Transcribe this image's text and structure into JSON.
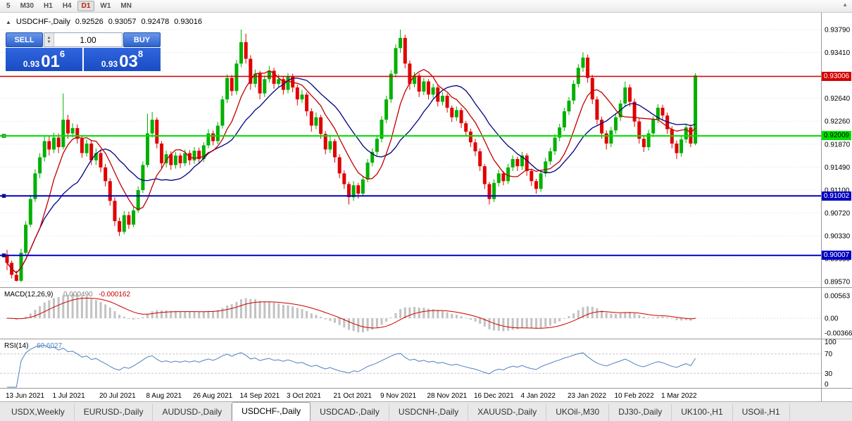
{
  "toolbar": {
    "timeframes": [
      "5",
      "M30",
      "H1",
      "H4",
      "D1",
      "W1",
      "MN"
    ],
    "active_timeframe": "D1"
  },
  "icons": {
    "panel_toggle": "▲",
    "volume_up": "▲",
    "volume_down": "▼",
    "chart_scroll": "▲"
  },
  "chart": {
    "header": {
      "symbol": "USDCHF-,Daily",
      "open": "0.92526",
      "high": "0.93057",
      "low": "0.92478",
      "close": "0.93016"
    },
    "price_axis": [
      "0.93790",
      "0.93410",
      "0.93040",
      "0.92640",
      "0.92260",
      "0.91870",
      "0.91490",
      "0.91100",
      "0.90720",
      "0.90330",
      "0.89950",
      "0.89570"
    ],
    "date_axis": [
      "13 Jun 2021",
      "1 Jul 2021",
      "20 Jul 2021",
      "8 Aug 2021",
      "26 Aug 2021",
      "14 Sep 2021",
      "3 Oct 2021",
      "21 Oct 2021",
      "9 Nov 2021",
      "28 Nov 2021",
      "16 Dec 2021",
      "4 Jan 2022",
      "23 Jan 2022",
      "10 Feb 2022",
      "1 Mar 2022"
    ],
    "hlines": [
      {
        "price": "0.93006",
        "value": 0.93006,
        "color": "#d40000",
        "label_text_color": "#ffffff",
        "width": 1.4,
        "handle": false
      },
      {
        "price": "0.92009",
        "value": 0.92009,
        "color": "#00e000",
        "label_text_color": "#000000",
        "width": 2,
        "handle": true
      },
      {
        "price": "0.91002",
        "value": 0.91002,
        "color": "#0000c0",
        "label_text_color": "#ffffff",
        "width": 2,
        "handle": true
      },
      {
        "price": "0.90007",
        "value": 0.90007,
        "color": "#0000c0",
        "label_text_color": "#ffffff",
        "width": 2,
        "handle": true
      }
    ],
    "colors": {
      "up": "#00b000",
      "down": "#e00000",
      "ma_fast": "#c00000",
      "ma_slow": "#000080",
      "macd_hist": "#c2c2c2",
      "macd_signal": "#cc0000",
      "rsi": "#4f81bd"
    }
  },
  "trade_panel": {
    "sell_label": "SELL",
    "buy_label": "BUY",
    "volume": "1.00",
    "sell_price": {
      "prefix": "0.93",
      "big": "01",
      "sup": "6"
    },
    "buy_price": {
      "prefix": "0.93",
      "big": "03",
      "sup": "8"
    }
  },
  "macd": {
    "label": "MACD(12,26,9)",
    "value_main": "0.000490",
    "value_signal": "-0.000162",
    "axis": [
      "0.00563",
      "0.00",
      "-0.00366"
    ]
  },
  "rsi": {
    "label": "RSI(14)",
    "value": "60.6027",
    "axis": [
      "100",
      "70",
      "30",
      "0"
    ]
  },
  "tabs": {
    "items": [
      "USDX,Weekly",
      "EURUSD-,Daily",
      "AUDUSD-,Daily",
      "USDCHF-,Daily",
      "USDCAD-,Daily",
      "USDCNH-,Daily",
      "XAUUSD-,Daily",
      "UKOil-,M30",
      "DJ30-,Daily",
      "UK100-,H1",
      "USOil-,H1"
    ],
    "active_index": 3
  },
  "chart_data": {
    "type": "candlestick",
    "title": "USDCHF-,Daily",
    "symbol": "USDCHF-",
    "timeframe": "Daily",
    "ohlc_header": {
      "open": 0.92526,
      "high": 0.93057,
      "low": 0.92478,
      "close": 0.93016
    },
    "bid": 0.93016,
    "ask": 0.93038,
    "ylim": [
      0.8947,
      0.9407
    ],
    "y_ticks": [
      0.9379,
      0.9341,
      0.9304,
      0.9264,
      0.9226,
      0.9187,
      0.9149,
      0.911,
      0.9072,
      0.9033,
      0.8995,
      0.8957
    ],
    "x_labels": [
      "13 Jun 2021",
      "1 Jul 2021",
      "20 Jul 2021",
      "8 Aug 2021",
      "26 Aug 2021",
      "14 Sep 2021",
      "3 Oct 2021",
      "21 Oct 2021",
      "9 Nov 2021",
      "28 Nov 2021",
      "16 Dec 2021",
      "4 Jan 2022",
      "23 Jan 2022",
      "10 Feb 2022",
      "1 Mar 2022"
    ],
    "horizontal_levels": [
      0.93006,
      0.92009,
      0.91002,
      0.90007
    ],
    "indicators": {
      "macd": {
        "params": [
          12,
          26,
          9
        ],
        "current": [
          0.00049,
          -0.000162
        ],
        "axis_range": [
          -0.00366,
          0.00563
        ]
      },
      "rsi": {
        "period": 14,
        "current": 60.6027,
        "levels": [
          30,
          70
        ]
      }
    },
    "candles": [
      [
        0.9002,
        0.901,
        0.8976,
        0.8988
      ],
      [
        0.8988,
        0.8992,
        0.8962,
        0.8968
      ],
      [
        0.8968,
        0.8975,
        0.8957,
        0.8958
      ],
      [
        0.8958,
        0.9012,
        0.8956,
        0.9005
      ],
      [
        0.9005,
        0.9058,
        0.9,
        0.9052
      ],
      [
        0.9052,
        0.9102,
        0.9048,
        0.9095
      ],
      [
        0.9095,
        0.9145,
        0.909,
        0.9138
      ],
      [
        0.9138,
        0.9172,
        0.913,
        0.9165
      ],
      [
        0.9165,
        0.92,
        0.9158,
        0.9192
      ],
      [
        0.9192,
        0.9202,
        0.9168,
        0.9178
      ],
      [
        0.9178,
        0.9206,
        0.9172,
        0.9198
      ],
      [
        0.9198,
        0.9205,
        0.9172,
        0.9182
      ],
      [
        0.9182,
        0.9272,
        0.9178,
        0.9228
      ],
      [
        0.9228,
        0.9236,
        0.9196,
        0.9205
      ],
      [
        0.9205,
        0.9222,
        0.9198,
        0.9214
      ],
      [
        0.9214,
        0.922,
        0.9188,
        0.9196
      ],
      [
        0.9196,
        0.9202,
        0.9164,
        0.9172
      ],
      [
        0.9172,
        0.9195,
        0.9166,
        0.9188
      ],
      [
        0.9188,
        0.9194,
        0.9152,
        0.916
      ],
      [
        0.916,
        0.918,
        0.9152,
        0.9172
      ],
      [
        0.9172,
        0.9178,
        0.914,
        0.9148
      ],
      [
        0.9148,
        0.9154,
        0.9116,
        0.9125
      ],
      [
        0.9125,
        0.913,
        0.9084,
        0.9092
      ],
      [
        0.9092,
        0.9098,
        0.905,
        0.9058
      ],
      [
        0.9058,
        0.9064,
        0.9033,
        0.904
      ],
      [
        0.904,
        0.9075,
        0.9036,
        0.9068
      ],
      [
        0.9068,
        0.9074,
        0.9045,
        0.9052
      ],
      [
        0.9052,
        0.9082,
        0.9048,
        0.9076
      ],
      [
        0.9076,
        0.9116,
        0.9072,
        0.911
      ],
      [
        0.911,
        0.9158,
        0.9105,
        0.9152
      ],
      [
        0.9152,
        0.9238,
        0.9148,
        0.9205
      ],
      [
        0.9205,
        0.9241,
        0.9198,
        0.9228
      ],
      [
        0.9228,
        0.9232,
        0.918,
        0.9188
      ],
      [
        0.9188,
        0.9192,
        0.9146,
        0.9155
      ],
      [
        0.9155,
        0.9176,
        0.9148,
        0.917
      ],
      [
        0.917,
        0.9175,
        0.9144,
        0.9152
      ],
      [
        0.9152,
        0.9174,
        0.9146,
        0.9168
      ],
      [
        0.9168,
        0.9172,
        0.9147,
        0.9155
      ],
      [
        0.9155,
        0.9178,
        0.915,
        0.9172
      ],
      [
        0.9172,
        0.9177,
        0.9152,
        0.916
      ],
      [
        0.916,
        0.9182,
        0.9154,
        0.9176
      ],
      [
        0.9176,
        0.9181,
        0.9155,
        0.9162
      ],
      [
        0.9162,
        0.919,
        0.9157,
        0.9185
      ],
      [
        0.9185,
        0.9212,
        0.918,
        0.9205
      ],
      [
        0.9205,
        0.921,
        0.9185,
        0.9192
      ],
      [
        0.9192,
        0.9224,
        0.9187,
        0.9218
      ],
      [
        0.9218,
        0.9268,
        0.9213,
        0.9262
      ],
      [
        0.9262,
        0.9304,
        0.9256,
        0.9298
      ],
      [
        0.9298,
        0.9303,
        0.9268,
        0.9276
      ],
      [
        0.9276,
        0.9328,
        0.927,
        0.9322
      ],
      [
        0.9322,
        0.9379,
        0.9316,
        0.9358
      ],
      [
        0.9358,
        0.9372,
        0.9322,
        0.933
      ],
      [
        0.933,
        0.9336,
        0.9278,
        0.9288
      ],
      [
        0.9288,
        0.9312,
        0.9282,
        0.9305
      ],
      [
        0.9305,
        0.931,
        0.9262,
        0.9272
      ],
      [
        0.9272,
        0.9302,
        0.9266,
        0.9296
      ],
      [
        0.9296,
        0.9318,
        0.929,
        0.931
      ],
      [
        0.931,
        0.9315,
        0.928,
        0.9288
      ],
      [
        0.9288,
        0.9304,
        0.9282,
        0.9296
      ],
      [
        0.9296,
        0.9301,
        0.927,
        0.9278
      ],
      [
        0.9278,
        0.9306,
        0.9272,
        0.93
      ],
      [
        0.93,
        0.9305,
        0.9274,
        0.9282
      ],
      [
        0.9282,
        0.9287,
        0.9252,
        0.9262
      ],
      [
        0.9262,
        0.9278,
        0.9256,
        0.927
      ],
      [
        0.927,
        0.9274,
        0.9234,
        0.9242
      ],
      [
        0.9242,
        0.9247,
        0.9208,
        0.9218
      ],
      [
        0.9218,
        0.924,
        0.9212,
        0.9232
      ],
      [
        0.9232,
        0.9236,
        0.9196,
        0.9204
      ],
      [
        0.9204,
        0.9209,
        0.917,
        0.9178
      ],
      [
        0.9178,
        0.92,
        0.9172,
        0.9192
      ],
      [
        0.9192,
        0.9196,
        0.9156,
        0.9165
      ],
      [
        0.9165,
        0.917,
        0.913,
        0.9138
      ],
      [
        0.9138,
        0.9143,
        0.9112,
        0.912
      ],
      [
        0.912,
        0.9124,
        0.9086,
        0.9098
      ],
      [
        0.9098,
        0.9125,
        0.9092,
        0.9118
      ],
      [
        0.9118,
        0.9122,
        0.9096,
        0.9104
      ],
      [
        0.9104,
        0.9134,
        0.9099,
        0.9128
      ],
      [
        0.9128,
        0.9162,
        0.9123,
        0.9156
      ],
      [
        0.9156,
        0.918,
        0.915,
        0.9174
      ],
      [
        0.9174,
        0.9202,
        0.9168,
        0.9196
      ],
      [
        0.9196,
        0.9234,
        0.919,
        0.9228
      ],
      [
        0.9228,
        0.9268,
        0.9222,
        0.9262
      ],
      [
        0.9262,
        0.9311,
        0.9256,
        0.9305
      ],
      [
        0.9305,
        0.9354,
        0.9299,
        0.9348
      ],
      [
        0.9348,
        0.9379,
        0.934,
        0.9365
      ],
      [
        0.9365,
        0.937,
        0.9314,
        0.9322
      ],
      [
        0.9322,
        0.9327,
        0.9278,
        0.9288
      ],
      [
        0.9288,
        0.9308,
        0.9282,
        0.9302
      ],
      [
        0.9302,
        0.9306,
        0.9266,
        0.9275
      ],
      [
        0.9275,
        0.9298,
        0.9269,
        0.9292
      ],
      [
        0.9292,
        0.9296,
        0.9262,
        0.927
      ],
      [
        0.927,
        0.9288,
        0.9264,
        0.9282
      ],
      [
        0.9282,
        0.9286,
        0.925,
        0.9258
      ],
      [
        0.9258,
        0.9274,
        0.9252,
        0.9268
      ],
      [
        0.9268,
        0.9272,
        0.924,
        0.9248
      ],
      [
        0.9248,
        0.9252,
        0.9224,
        0.9232
      ],
      [
        0.9232,
        0.925,
        0.9226,
        0.9244
      ],
      [
        0.9244,
        0.9248,
        0.9214,
        0.9222
      ],
      [
        0.9222,
        0.9226,
        0.92,
        0.9208
      ],
      [
        0.9208,
        0.9213,
        0.9182,
        0.919
      ],
      [
        0.919,
        0.9196,
        0.9167,
        0.9175
      ],
      [
        0.9175,
        0.918,
        0.9142,
        0.915
      ],
      [
        0.915,
        0.9154,
        0.9112,
        0.912
      ],
      [
        0.912,
        0.9124,
        0.9086,
        0.9095
      ],
      [
        0.9095,
        0.9128,
        0.909,
        0.9122
      ],
      [
        0.9122,
        0.9144,
        0.9116,
        0.9138
      ],
      [
        0.9138,
        0.9142,
        0.9118,
        0.9125
      ],
      [
        0.9125,
        0.9154,
        0.912,
        0.9148
      ],
      [
        0.9148,
        0.9168,
        0.9142,
        0.9162
      ],
      [
        0.9162,
        0.9166,
        0.9142,
        0.915
      ],
      [
        0.915,
        0.9174,
        0.9144,
        0.9168
      ],
      [
        0.9168,
        0.9172,
        0.9134,
        0.9142
      ],
      [
        0.9142,
        0.9146,
        0.9117,
        0.9125
      ],
      [
        0.9125,
        0.9129,
        0.9104,
        0.9112
      ],
      [
        0.9112,
        0.9144,
        0.9107,
        0.9138
      ],
      [
        0.9138,
        0.9164,
        0.9132,
        0.9158
      ],
      [
        0.9158,
        0.9181,
        0.9152,
        0.9175
      ],
      [
        0.9175,
        0.9204,
        0.9169,
        0.9198
      ],
      [
        0.9198,
        0.9221,
        0.9192,
        0.9215
      ],
      [
        0.9215,
        0.9248,
        0.9209,
        0.9242
      ],
      [
        0.9242,
        0.9266,
        0.9236,
        0.926
      ],
      [
        0.926,
        0.9294,
        0.9254,
        0.9288
      ],
      [
        0.9288,
        0.9321,
        0.9282,
        0.9315
      ],
      [
        0.9315,
        0.9341,
        0.9308,
        0.9332
      ],
      [
        0.9332,
        0.9337,
        0.929,
        0.9298
      ],
      [
        0.9298,
        0.9303,
        0.9254,
        0.9262
      ],
      [
        0.9262,
        0.9267,
        0.922,
        0.9228
      ],
      [
        0.9228,
        0.9233,
        0.9196,
        0.9205
      ],
      [
        0.9205,
        0.921,
        0.9178,
        0.9188
      ],
      [
        0.9188,
        0.9216,
        0.9182,
        0.921
      ],
      [
        0.921,
        0.9238,
        0.9204,
        0.9232
      ],
      [
        0.9232,
        0.9261,
        0.9226,
        0.9255
      ],
      [
        0.9255,
        0.9292,
        0.9249,
        0.9282
      ],
      [
        0.9282,
        0.9287,
        0.925,
        0.9258
      ],
      [
        0.9258,
        0.9263,
        0.9216,
        0.9225
      ],
      [
        0.9225,
        0.923,
        0.9188,
        0.9196
      ],
      [
        0.9196,
        0.9201,
        0.9174,
        0.9182
      ],
      [
        0.9182,
        0.9211,
        0.9176,
        0.9205
      ],
      [
        0.9205,
        0.9234,
        0.9199,
        0.9228
      ],
      [
        0.9228,
        0.9254,
        0.9222,
        0.9248
      ],
      [
        0.9248,
        0.9253,
        0.9227,
        0.9235
      ],
      [
        0.9235,
        0.924,
        0.9204,
        0.9212
      ],
      [
        0.9212,
        0.9217,
        0.918,
        0.9188
      ],
      [
        0.9188,
        0.9193,
        0.9162,
        0.9172
      ],
      [
        0.9172,
        0.9201,
        0.9166,
        0.9195
      ],
      [
        0.9195,
        0.9221,
        0.9189,
        0.9215
      ],
      [
        0.9215,
        0.922,
        0.9182,
        0.9188
      ],
      [
        0.9188,
        0.9306,
        0.9185,
        0.9302
      ]
    ]
  }
}
